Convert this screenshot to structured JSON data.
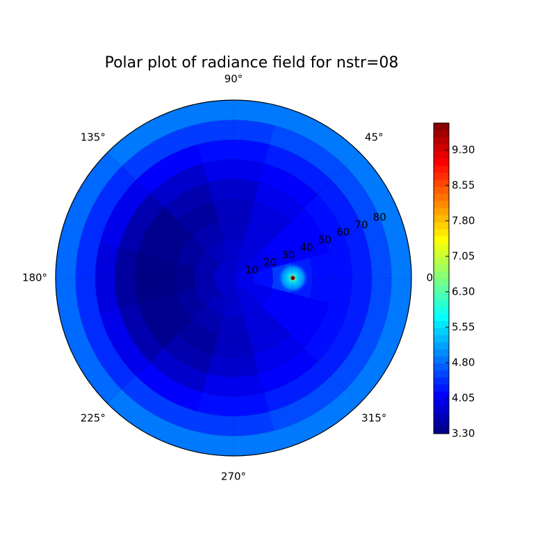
{
  "chart_data": {
    "type": "polar_contour",
    "title": "Polar plot of radiance field for nstr=08",
    "colormap": "jet",
    "grid": true,
    "theta": [
      0,
      30,
      60,
      90,
      120,
      150,
      180,
      210,
      240,
      270,
      300,
      330
    ],
    "r": [
      5,
      15,
      25,
      35,
      45,
      55,
      65,
      75,
      85
    ],
    "rlim": [
      0,
      90
    ],
    "z": [
      [
        4.0,
        4.2,
        4.5,
        4.3,
        4.2,
        4.2,
        4.3,
        4.6,
        4.9
      ],
      [
        4.0,
        4.0,
        4.1,
        4.1,
        4.1,
        4.2,
        4.3,
        4.6,
        4.9
      ],
      [
        3.9,
        3.9,
        3.9,
        3.9,
        4.0,
        4.1,
        4.3,
        4.6,
        4.9
      ],
      [
        3.8,
        3.8,
        3.7,
        3.7,
        3.8,
        4.0,
        4.2,
        4.5,
        4.9
      ],
      [
        3.8,
        3.7,
        3.6,
        3.5,
        3.6,
        3.8,
        4.1,
        4.5,
        4.9
      ],
      [
        3.8,
        3.6,
        3.5,
        3.4,
        3.4,
        3.6,
        4.0,
        4.4,
        4.8
      ],
      [
        3.8,
        3.6,
        3.4,
        3.35,
        3.35,
        3.5,
        3.9,
        4.4,
        4.8
      ],
      [
        3.8,
        3.6,
        3.5,
        3.4,
        3.4,
        3.6,
        4.0,
        4.4,
        4.8
      ],
      [
        3.8,
        3.7,
        3.6,
        3.5,
        3.6,
        3.8,
        4.1,
        4.5,
        4.9
      ],
      [
        3.8,
        3.8,
        3.7,
        3.7,
        3.8,
        4.0,
        4.2,
        4.5,
        4.9
      ],
      [
        3.9,
        3.9,
        3.9,
        3.9,
        4.0,
        4.1,
        4.3,
        4.6,
        4.9
      ],
      [
        4.0,
        4.0,
        4.1,
        4.1,
        4.1,
        4.2,
        4.3,
        4.6,
        4.9
      ]
    ],
    "peak": {
      "r": 30,
      "theta": 0,
      "value": 9.87
    },
    "thetaticks": [
      {
        "value": 0,
        "label": "0°"
      },
      {
        "value": 45,
        "label": "45°"
      },
      {
        "value": 90,
        "label": "90°"
      },
      {
        "value": 135,
        "label": "135°"
      },
      {
        "value": 180,
        "label": "180°"
      },
      {
        "value": 225,
        "label": "225°"
      },
      {
        "value": 270,
        "label": "270°"
      },
      {
        "value": 315,
        "label": "315°"
      }
    ],
    "rticks": [
      10,
      20,
      30,
      40,
      50,
      60,
      70,
      80
    ],
    "clim": [
      3.3,
      9.87
    ],
    "cticks": [
      {
        "value": 3.3,
        "label": "3.30"
      },
      {
        "value": 4.05,
        "label": "4.05"
      },
      {
        "value": 4.8,
        "label": "4.80"
      },
      {
        "value": 5.55,
        "label": "5.55"
      },
      {
        "value": 6.3,
        "label": "6.30"
      },
      {
        "value": 7.05,
        "label": "7.05"
      },
      {
        "value": 7.8,
        "label": "7.80"
      },
      {
        "value": 8.55,
        "label": "8.55"
      },
      {
        "value": 9.3,
        "label": "9.30"
      }
    ]
  }
}
